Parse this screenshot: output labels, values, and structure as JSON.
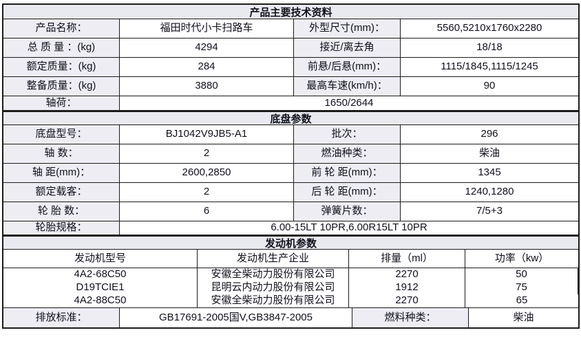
{
  "colors": {
    "border": "#1b1b1b",
    "header_bg": "#e9e9f0",
    "label_bg": "#ededf3",
    "text": "#10101c",
    "page_bg": "#ffffff"
  },
  "section_product": {
    "title": "产品主要技术资料",
    "rows": [
      {
        "label": "产品名称：",
        "value": "福田时代小卡扫路车",
        "label2": "外型尺寸(mm)：",
        "value2": "5560,5210x1760x2280"
      },
      {
        "label": "总 质 量 ：(kg)",
        "value": "4294",
        "label2": "接近/离去角",
        "value2": "18/18"
      },
      {
        "label": "额定质量：(kg)",
        "value": "284",
        "label2": "前悬/后悬(mm)：",
        "value2": "1115/1845,1115/1245"
      },
      {
        "label": "整备质量：(kg)",
        "value": "3880",
        "label2": "最高车速(km/h)：",
        "value2": "90"
      }
    ],
    "axle_load": {
      "label": "轴荷：",
      "value": "1650/2644"
    }
  },
  "section_chassis": {
    "title": "底盘参数",
    "rows": [
      {
        "label": "底盘型号：",
        "value": "BJ1042V9JB5-A1",
        "label2": "批次：",
        "value2": "296"
      },
      {
        "label": "轴 数：",
        "value": "2",
        "label2": "燃油种类：",
        "value2": "柴油"
      },
      {
        "label": "轴 距(mm)：",
        "value": "2600,2850",
        "label2": "前 轮 距(mm)：",
        "value2": "1345"
      },
      {
        "label": "额定载客：",
        "value": "2",
        "label2": "后 轮 距(mm)：",
        "value2": "1240,1280"
      },
      {
        "label": "轮 胎 数：",
        "value": "6",
        "label2": "弹簧片数：",
        "value2": "7/5+3"
      }
    ],
    "tire_spec": {
      "label": "轮胎规格：",
      "value": "6.00-15LT 10PR,6.00R15LT 10PR"
    }
  },
  "section_engine": {
    "title": "发动机参数",
    "headers": {
      "model": "发动机型号",
      "manufacturer": "发动机生产企业",
      "displacement": "排量（ml）",
      "power": "功率（kw）"
    },
    "engines": [
      {
        "model": "4A2-68C50",
        "manufacturer": "安徽全柴动力股份有限公司",
        "displacement": "2270",
        "power": "50"
      },
      {
        "model": "D19TCIE1",
        "manufacturer": "昆明云内动力股份有限公司",
        "displacement": "1912",
        "power": "75"
      },
      {
        "model": "4A2-88C50",
        "manufacturer": "安徽全柴动力股份有限公司",
        "displacement": "2270",
        "power": "65"
      }
    ],
    "emission": {
      "label": "排放标准：",
      "value": "GB17691-2005国V,GB3847-2005",
      "fuel_label": "燃料种类：",
      "fuel_value": "柴油"
    }
  }
}
